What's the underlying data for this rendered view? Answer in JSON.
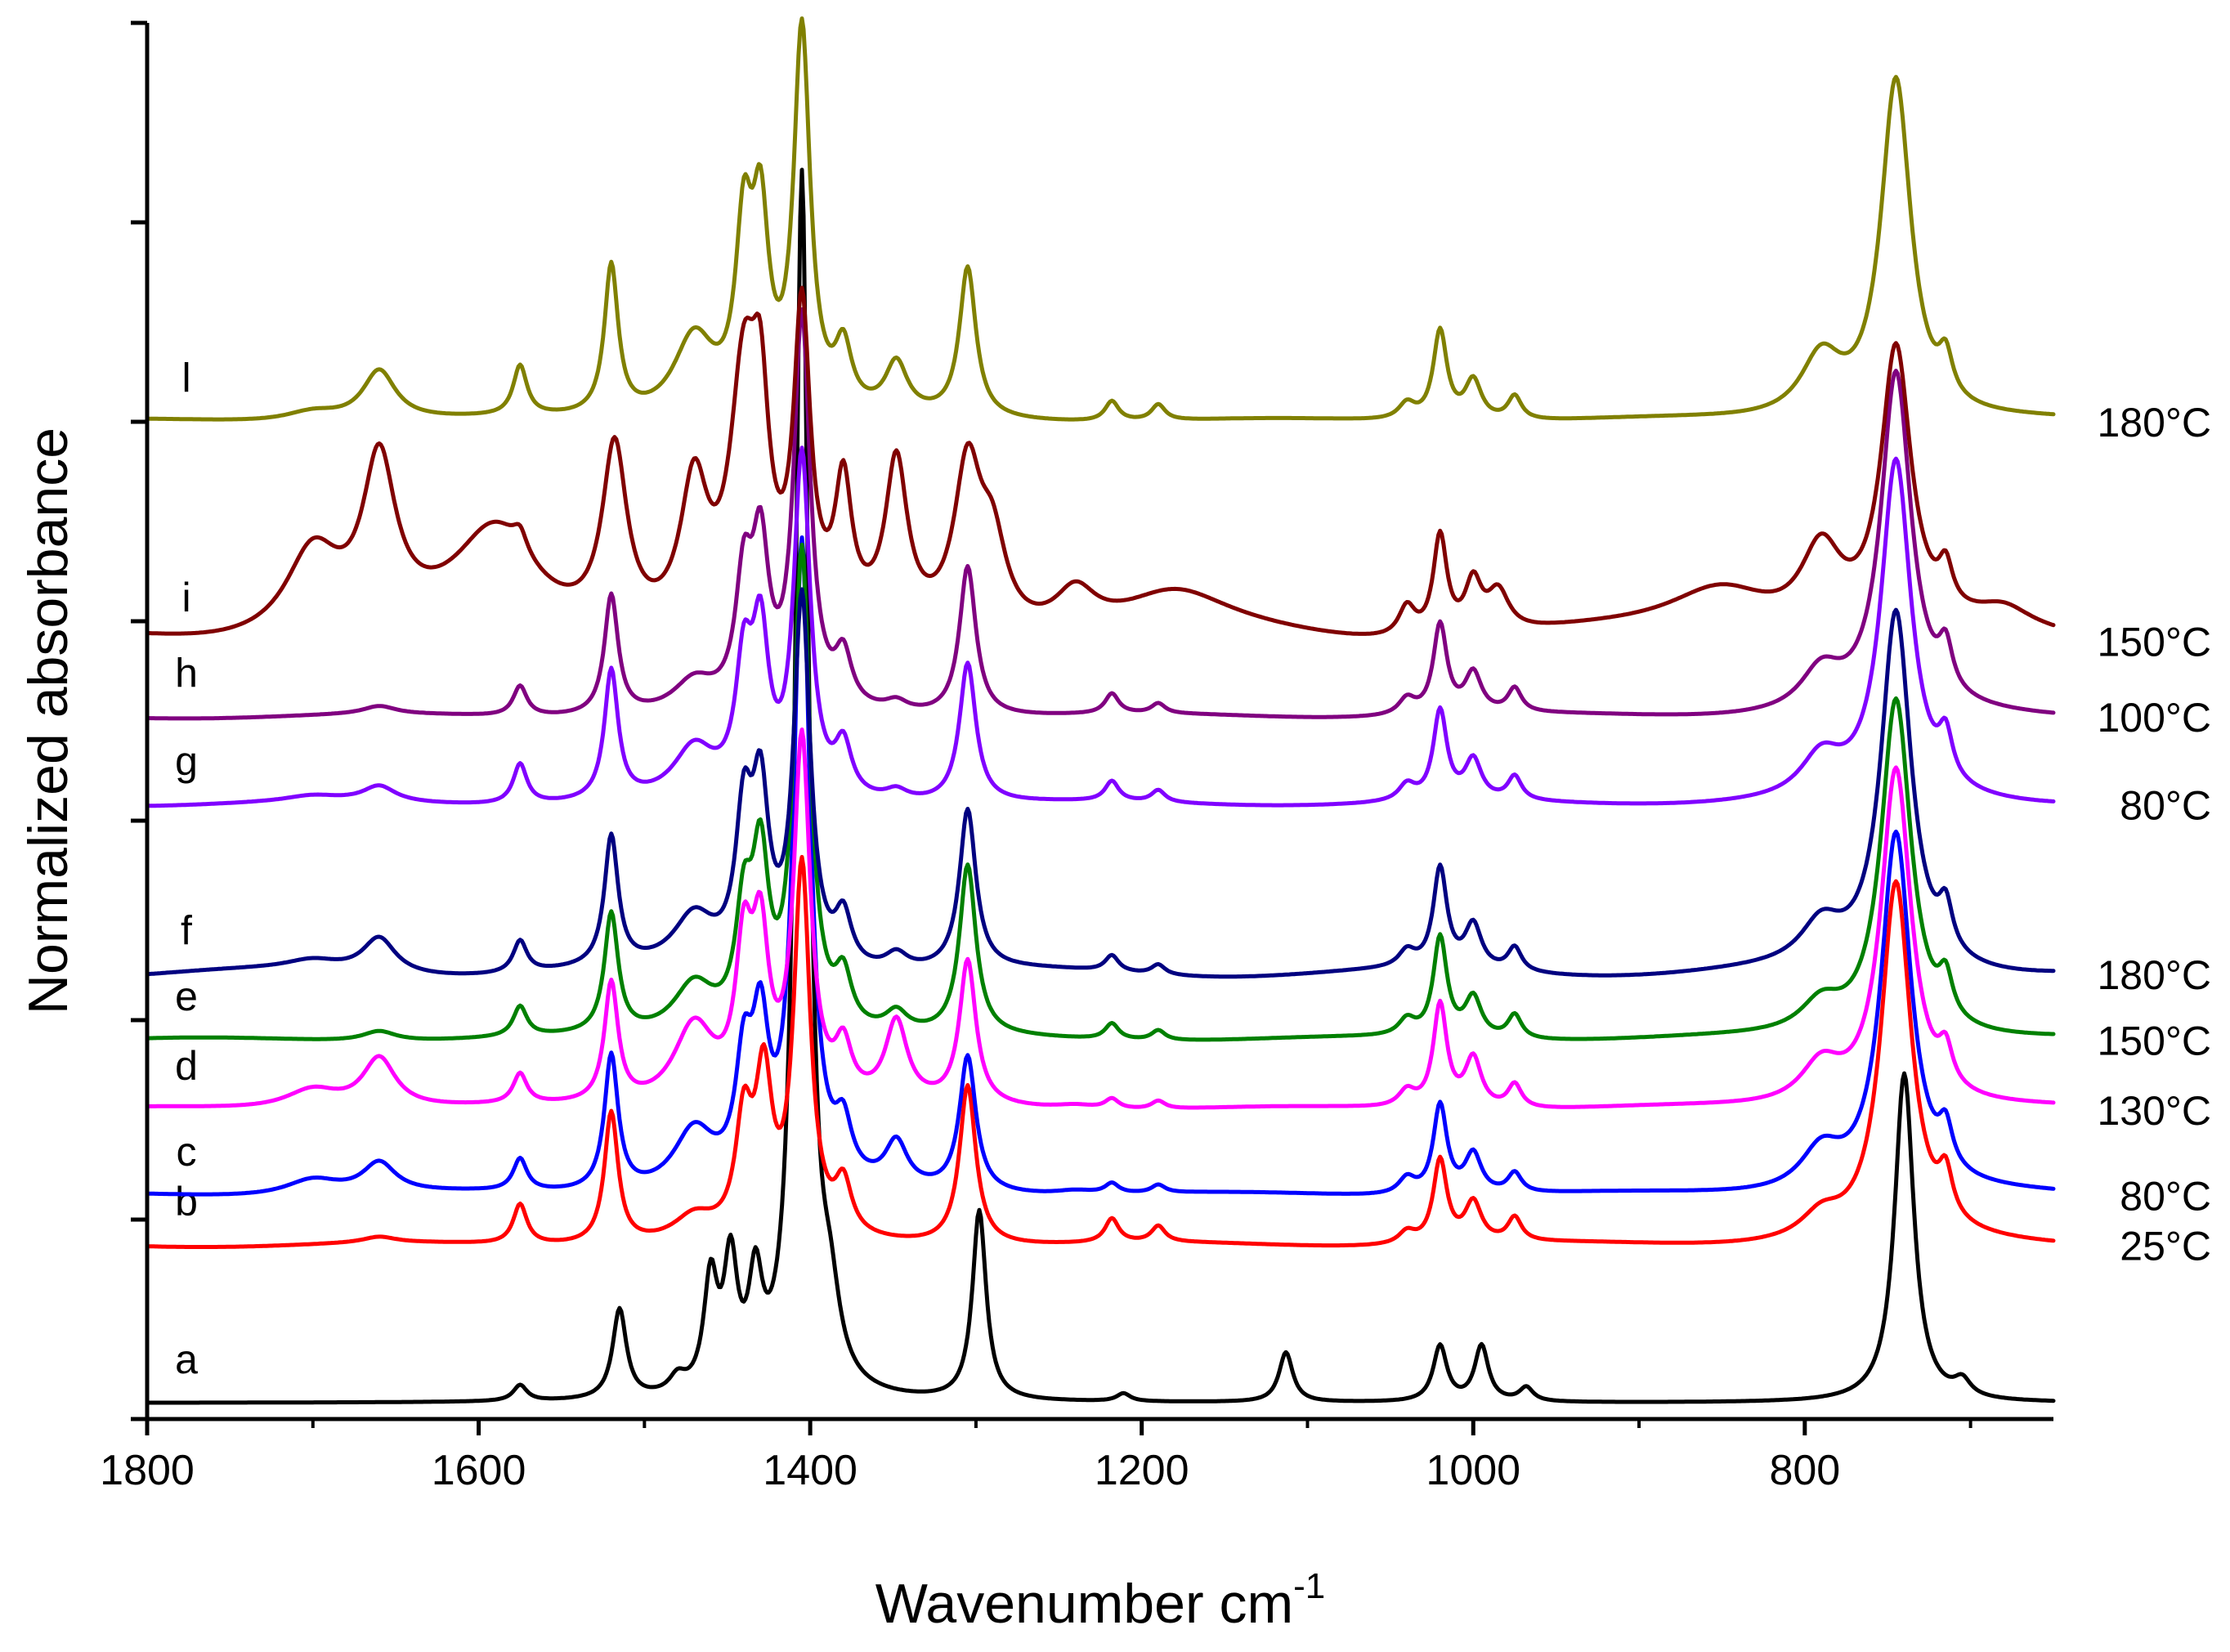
{
  "chart_data": {
    "type": "line",
    "title": "",
    "xlabel": "Wavenumber cm",
    "xlabel_superscript": "-1",
    "ylabel": "Normalized absorbance",
    "xlim": [
      1800,
      650
    ],
    "x_reversed": true,
    "x_ticks": [
      1800,
      1600,
      1400,
      1200,
      1000,
      800
    ],
    "x_tick_labels": [
      "1800",
      "1600",
      "1400",
      "1200",
      "1000",
      "800"
    ],
    "ylim": [
      0,
      7
    ],
    "y_ticks": [
      0,
      1,
      2,
      3,
      4,
      5,
      6,
      7
    ],
    "y_tick_labels_shown": false,
    "grid": false,
    "series": [
      {
        "name": "a",
        "temperature": "",
        "color": "#000000",
        "offset": 0.08,
        "baseline": 0.0,
        "peaks": [
          [
            1575,
            0.08,
            5
          ],
          [
            1515,
            0.45,
            5
          ],
          [
            1480,
            0.08,
            6
          ],
          [
            1460,
            0.55,
            5
          ],
          [
            1448,
            0.62,
            5
          ],
          [
            1433,
            0.5,
            5
          ],
          [
            1405,
            6.1,
            5
          ],
          [
            1388,
            0.35,
            7
          ],
          [
            1298,
            0.95,
            5
          ],
          [
            1211,
            0.04,
            5
          ],
          [
            1113,
            0.25,
            5
          ],
          [
            1020,
            0.28,
            5
          ],
          [
            995,
            0.28,
            5
          ],
          [
            968,
            0.07,
            5
          ],
          [
            740,
            1.65,
            7
          ],
          [
            705,
            0.08,
            6
          ]
        ]
      },
      {
        "name": "b",
        "temperature": "25°C",
        "color": "#ff0000",
        "offset": 0.87,
        "baseline": 0.01,
        "peaks": [
          [
            1660,
            0.03,
            12
          ],
          [
            1575,
            0.2,
            5
          ],
          [
            1520,
            0.66,
            5
          ],
          [
            1470,
            0.12,
            15
          ],
          [
            1440,
            0.55,
            6
          ],
          [
            1428,
            0.75,
            6
          ],
          [
            1405,
            1.85,
            6
          ],
          [
            1380,
            0.25,
            6
          ],
          [
            1305,
            0.8,
            6
          ],
          [
            1218,
            0.12,
            5
          ],
          [
            1190,
            0.08,
            5
          ],
          [
            1040,
            0.06,
            6
          ],
          [
            1020,
            0.42,
            5
          ],
          [
            1000,
            0.2,
            6
          ],
          [
            975,
            0.12,
            5
          ],
          [
            790,
            0.12,
            15
          ],
          [
            745,
            1.8,
            11
          ],
          [
            715,
            0.22,
            5
          ]
        ]
      },
      {
        "name": "c",
        "temperature": "80°C",
        "color": "#0000ff",
        "offset": 1.12,
        "baseline": 0.01,
        "peaks": [
          [
            1700,
            0.08,
            20
          ],
          [
            1660,
            0.15,
            12
          ],
          [
            1575,
            0.16,
            5
          ],
          [
            1520,
            0.68,
            5
          ],
          [
            1470,
            0.3,
            15
          ],
          [
            1440,
            0.55,
            6
          ],
          [
            1430,
            0.7,
            6
          ],
          [
            1405,
            3.2,
            6
          ],
          [
            1380,
            0.25,
            6
          ],
          [
            1348,
            0.22,
            8
          ],
          [
            1305,
            0.68,
            6
          ],
          [
            1240,
            0.02,
            15
          ],
          [
            1218,
            0.05,
            5
          ],
          [
            1190,
            0.04,
            5
          ],
          [
            1040,
            0.08,
            6
          ],
          [
            1020,
            0.45,
            5
          ],
          [
            1000,
            0.2,
            6
          ],
          [
            975,
            0.1,
            5
          ],
          [
            790,
            0.2,
            15
          ],
          [
            745,
            1.8,
            11
          ],
          [
            715,
            0.2,
            5
          ]
        ]
      },
      {
        "name": "d",
        "temperature": "130°C",
        "color": "#ff00ff",
        "offset": 1.55,
        "baseline": 0.01,
        "peaks": [
          [
            1700,
            0.1,
            20
          ],
          [
            1660,
            0.25,
            12
          ],
          [
            1575,
            0.15,
            5
          ],
          [
            1520,
            0.6,
            5
          ],
          [
            1470,
            0.4,
            15
          ],
          [
            1440,
            0.7,
            6
          ],
          [
            1430,
            0.75,
            6
          ],
          [
            1405,
            1.8,
            6
          ],
          [
            1380,
            0.25,
            6
          ],
          [
            1348,
            0.4,
            8
          ],
          [
            1305,
            0.72,
            6
          ],
          [
            1240,
            0.02,
            15
          ],
          [
            1218,
            0.05,
            5
          ],
          [
            1190,
            0.04,
            5
          ],
          [
            1040,
            0.08,
            6
          ],
          [
            1020,
            0.52,
            5
          ],
          [
            1000,
            0.25,
            6
          ],
          [
            975,
            0.12,
            5
          ],
          [
            790,
            0.2,
            15
          ],
          [
            745,
            1.7,
            11
          ],
          [
            715,
            0.18,
            5
          ]
        ]
      },
      {
        "name": "e",
        "temperature": "150°C",
        "color": "#008000",
        "offset": 1.9,
        "baseline": 0.01,
        "peaks": [
          [
            1660,
            0.05,
            12
          ],
          [
            1575,
            0.15,
            5
          ],
          [
            1520,
            0.6,
            5
          ],
          [
            1470,
            0.25,
            15
          ],
          [
            1440,
            0.55,
            6
          ],
          [
            1430,
            0.8,
            6
          ],
          [
            1405,
            2.4,
            6
          ],
          [
            1380,
            0.25,
            6
          ],
          [
            1348,
            0.1,
            8
          ],
          [
            1305,
            0.85,
            6
          ],
          [
            1218,
            0.08,
            5
          ],
          [
            1190,
            0.05,
            5
          ],
          [
            1040,
            0.08,
            6
          ],
          [
            1020,
            0.5,
            5
          ],
          [
            1000,
            0.2,
            6
          ],
          [
            975,
            0.12,
            5
          ],
          [
            790,
            0.15,
            15
          ],
          [
            745,
            1.7,
            11
          ],
          [
            715,
            0.2,
            5
          ]
        ]
      },
      {
        "name": "f",
        "temperature": "180°C",
        "color": "#000080",
        "offset": 2.23,
        "baseline": 0.02,
        "peaks": [
          [
            1700,
            0.05,
            20
          ],
          [
            1660,
            0.18,
            12
          ],
          [
            1575,
            0.16,
            5
          ],
          [
            1520,
            0.65,
            5
          ],
          [
            1470,
            0.25,
            15
          ],
          [
            1440,
            0.7,
            6
          ],
          [
            1430,
            0.8,
            6
          ],
          [
            1405,
            1.85,
            6
          ],
          [
            1380,
            0.25,
            6
          ],
          [
            1348,
            0.08,
            8
          ],
          [
            1305,
            0.8,
            6
          ],
          [
            1218,
            0.08,
            5
          ],
          [
            1190,
            0.05,
            5
          ],
          [
            1040,
            0.08,
            6
          ],
          [
            1020,
            0.5,
            5
          ],
          [
            1000,
            0.22,
            6
          ],
          [
            975,
            0.12,
            5
          ],
          [
            790,
            0.2,
            15
          ],
          [
            745,
            1.8,
            11
          ],
          [
            715,
            0.22,
            5
          ]
        ]
      },
      {
        "name": "g",
        "temperature": "80°C",
        "color": "#8000ff",
        "offset": 3.08,
        "baseline": 0.01,
        "peaks": [
          [
            1700,
            0.03,
            20
          ],
          [
            1660,
            0.08,
            12
          ],
          [
            1575,
            0.2,
            5
          ],
          [
            1520,
            0.65,
            5
          ],
          [
            1470,
            0.25,
            15
          ],
          [
            1440,
            0.6,
            6
          ],
          [
            1430,
            0.75,
            6
          ],
          [
            1405,
            1.7,
            6
          ],
          [
            1380,
            0.25,
            6
          ],
          [
            1348,
            0.05,
            8
          ],
          [
            1305,
            0.7,
            6
          ],
          [
            1218,
            0.1,
            5
          ],
          [
            1190,
            0.06,
            5
          ],
          [
            1040,
            0.08,
            6
          ],
          [
            1020,
            0.45,
            5
          ],
          [
            1000,
            0.2,
            6
          ],
          [
            975,
            0.12,
            5
          ],
          [
            790,
            0.2,
            15
          ],
          [
            745,
            1.7,
            11
          ],
          [
            715,
            0.22,
            5
          ]
        ]
      },
      {
        "name": "h",
        "temperature": "100°C",
        "color": "#800080",
        "offset": 3.52,
        "baseline": 0.01,
        "peaks": [
          [
            1660,
            0.04,
            12
          ],
          [
            1575,
            0.15,
            5
          ],
          [
            1520,
            0.6,
            5
          ],
          [
            1470,
            0.15,
            15
          ],
          [
            1440,
            0.6,
            6
          ],
          [
            1430,
            0.75,
            6
          ],
          [
            1405,
            1.95,
            6
          ],
          [
            1380,
            0.25,
            6
          ],
          [
            1348,
            0.05,
            8
          ],
          [
            1305,
            0.75,
            6
          ],
          [
            1218,
            0.1,
            5
          ],
          [
            1190,
            0.05,
            5
          ],
          [
            1040,
            0.08,
            6
          ],
          [
            1020,
            0.45,
            5
          ],
          [
            1000,
            0.2,
            6
          ],
          [
            975,
            0.12,
            5
          ],
          [
            790,
            0.2,
            15
          ],
          [
            745,
            1.7,
            11
          ],
          [
            715,
            0.22,
            5
          ]
        ]
      },
      {
        "name": "i",
        "temperature": "150°C",
        "color": "#800000",
        "offset": 3.9,
        "baseline": 0.03,
        "peaks": [
          [
            1700,
            0.42,
            20
          ],
          [
            1660,
            0.8,
            12
          ],
          [
            1590,
            0.5,
            30
          ],
          [
            1575,
            0.1,
            5
          ],
          [
            1518,
            0.9,
            9
          ],
          [
            1470,
            0.7,
            10
          ],
          [
            1440,
            1.2,
            10
          ],
          [
            1430,
            0.8,
            6
          ],
          [
            1405,
            1.5,
            6
          ],
          [
            1380,
            0.65,
            6
          ],
          [
            1348,
            0.8,
            8
          ],
          [
            1305,
            0.8,
            10
          ],
          [
            1290,
            0.4,
            10
          ],
          [
            1240,
            0.2,
            15
          ],
          [
            1180,
            0.2,
            40
          ],
          [
            1040,
            0.15,
            6
          ],
          [
            1020,
            0.5,
            5
          ],
          [
            1000,
            0.25,
            6
          ],
          [
            985,
            0.2,
            8
          ],
          [
            850,
            0.25,
            40
          ],
          [
            790,
            0.4,
            15
          ],
          [
            745,
            1.4,
            11
          ],
          [
            715,
            0.2,
            5
          ],
          [
            680,
            0.1,
            20
          ]
        ]
      },
      {
        "name": "l",
        "temperature": "180°C",
        "color": "#808000",
        "offset": 5.0,
        "baseline": 0.01,
        "peaks": [
          [
            1700,
            0.05,
            20
          ],
          [
            1660,
            0.25,
            12
          ],
          [
            1575,
            0.25,
            5
          ],
          [
            1520,
            0.75,
            5
          ],
          [
            1470,
            0.4,
            15
          ],
          [
            1440,
            0.85,
            6
          ],
          [
            1430,
            0.9,
            6
          ],
          [
            1405,
            1.9,
            6
          ],
          [
            1380,
            0.3,
            6
          ],
          [
            1348,
            0.25,
            8
          ],
          [
            1305,
            0.75,
            6
          ],
          [
            1218,
            0.1,
            5
          ],
          [
            1190,
            0.08,
            5
          ],
          [
            1040,
            0.08,
            6
          ],
          [
            1020,
            0.45,
            5
          ],
          [
            1000,
            0.2,
            6
          ],
          [
            975,
            0.12,
            5
          ],
          [
            790,
            0.3,
            15
          ],
          [
            745,
            1.7,
            11
          ],
          [
            715,
            0.2,
            5
          ]
        ]
      }
    ]
  }
}
